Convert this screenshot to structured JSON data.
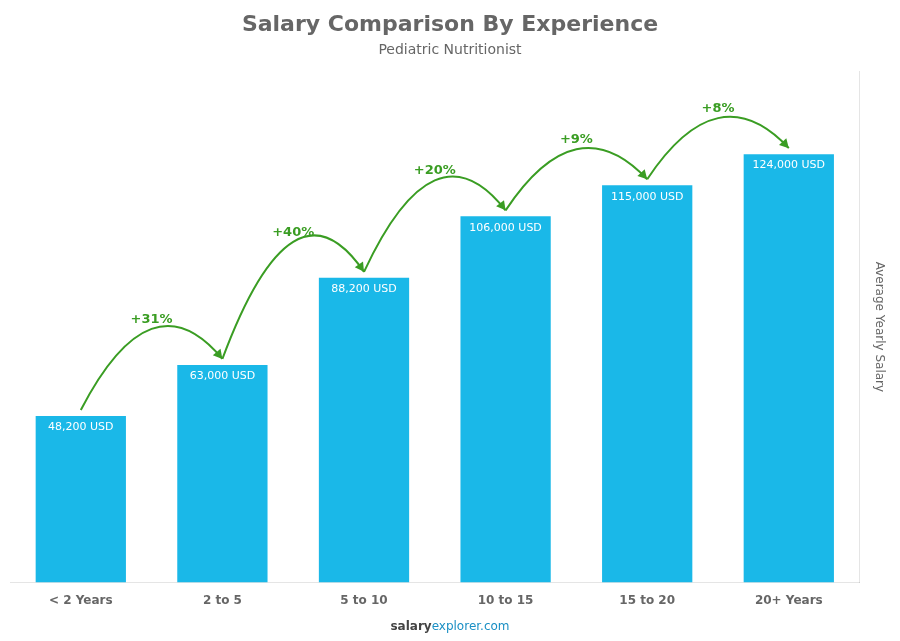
{
  "chart_data": {
    "type": "bar",
    "title": "Salary Comparison By Experience",
    "subtitle": "Pediatric Nutritionist",
    "categories": [
      "< 2 Years",
      "2 to 5",
      "5 to 10",
      "10 to 15",
      "15 to 20",
      "20+ Years"
    ],
    "values": [
      48200,
      63000,
      88200,
      106000,
      115000,
      124000
    ],
    "value_labels": [
      "48,200 USD",
      "63,000 USD",
      "88,200 USD",
      "106,000 USD",
      "115,000 USD",
      "124,000 USD"
    ],
    "data_labels": true,
    "color": "#1ab8e8",
    "ylabel": "Average Yearly Salary",
    "ylim": [
      0,
      148000
    ],
    "grid": false,
    "tick_labels": "x",
    "annotations": [
      {
        "text": "+31%",
        "from": "< 2 Years",
        "to": "2 to 5"
      },
      {
        "text": "+40%",
        "from": "2 to 5",
        "to": "5 to 10"
      },
      {
        "text": "+20%",
        "from": "5 to 10",
        "to": "10 to 15"
      },
      {
        "text": "+9%",
        "from": "10 to 15",
        "to": "15 to 20"
      },
      {
        "text": "+8%",
        "from": "15 to 20",
        "to": "20+ Years"
      }
    ],
    "footer": [
      "salary",
      "explorer.com"
    ]
  }
}
